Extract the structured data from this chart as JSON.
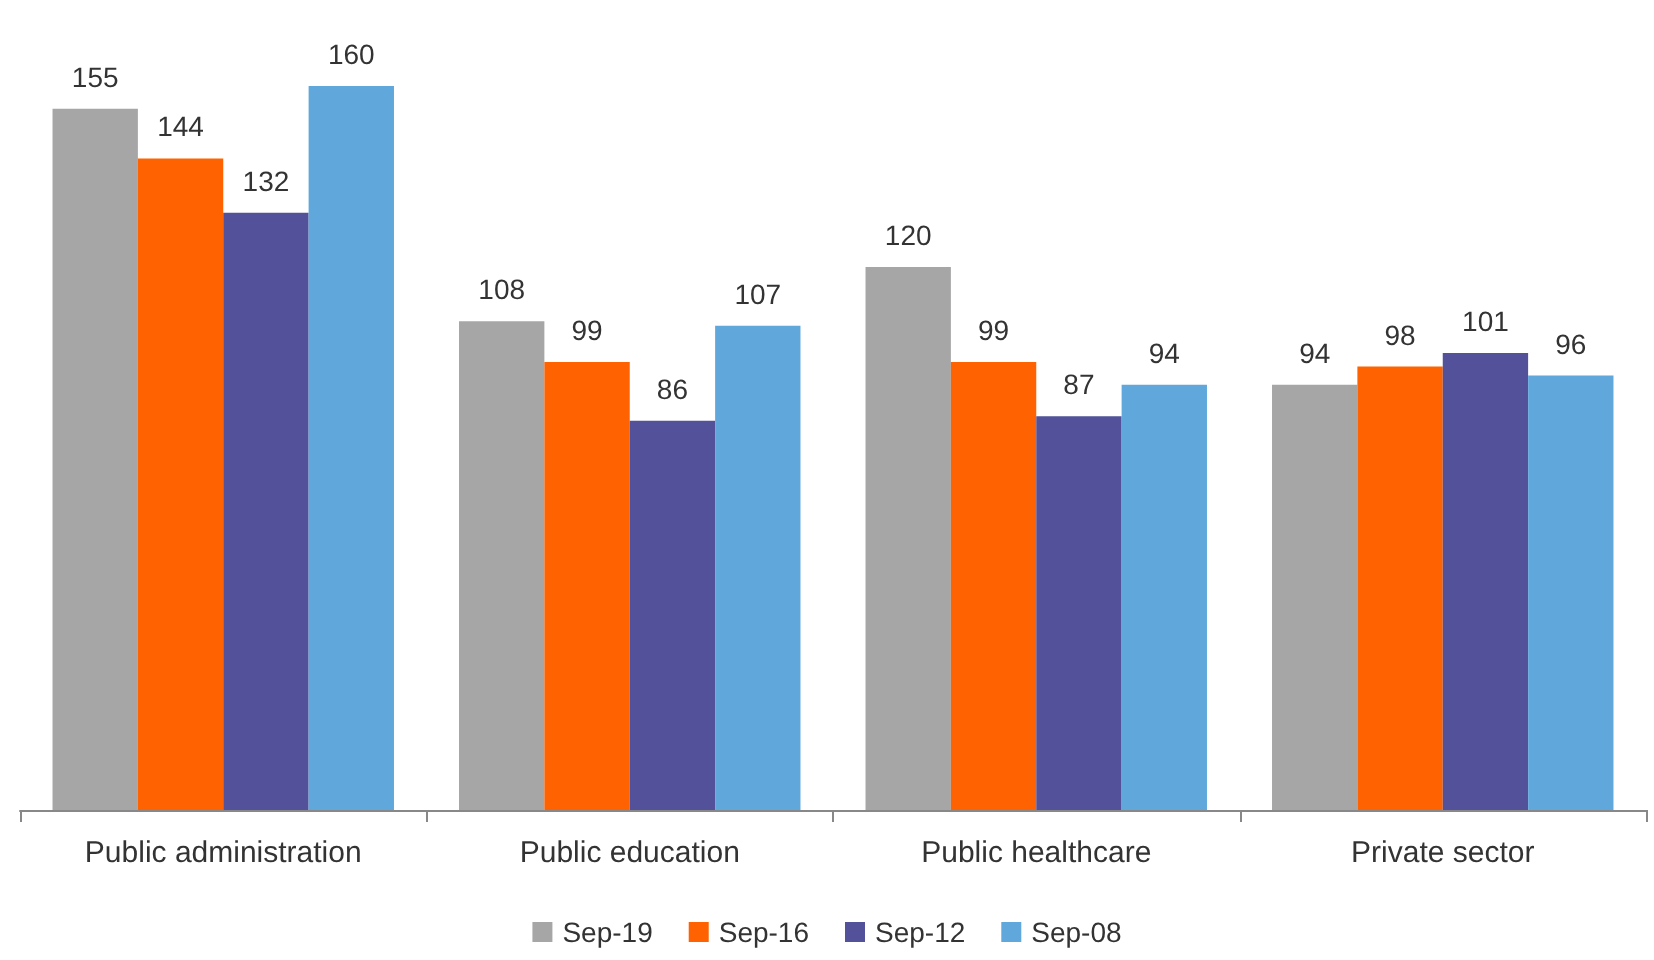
{
  "chart_data": {
    "type": "bar",
    "categories": [
      "Public administration",
      "Public education",
      "Public healthcare",
      "Private sector"
    ],
    "series": [
      {
        "name": "Sep-19",
        "color": "#a6a6a6",
        "values": [
          155,
          108,
          120,
          94
        ]
      },
      {
        "name": "Sep-16",
        "color": "#ff6200",
        "values": [
          144,
          99,
          99,
          98
        ]
      },
      {
        "name": "Sep-12",
        "color": "#525199",
        "values": [
          132,
          86,
          87,
          101
        ]
      },
      {
        "name": "Sep-08",
        "color": "#60a8dc",
        "values": [
          160,
          107,
          94,
          96
        ]
      }
    ],
    "data_labels": true,
    "legend": "bottom"
  }
}
